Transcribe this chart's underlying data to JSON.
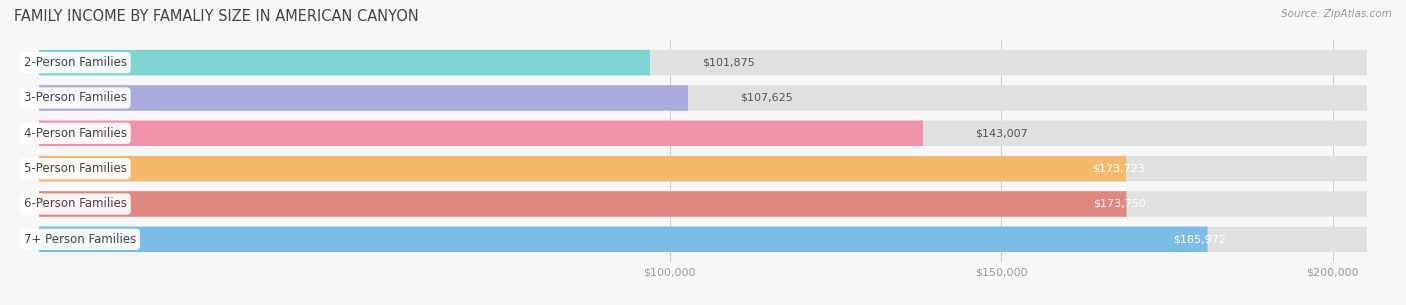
{
  "title": "FAMILY INCOME BY FAMALIY SIZE IN AMERICAN CANYON",
  "source": "Source: ZipAtlas.com",
  "categories": [
    "2-Person Families",
    "3-Person Families",
    "4-Person Families",
    "5-Person Families",
    "6-Person Families",
    "7+ Person Families"
  ],
  "values": [
    101875,
    107625,
    143007,
    173723,
    173750,
    185972
  ],
  "colors": [
    "#7DD4D1",
    "#AAAADD",
    "#F093A8",
    "#F4B96A",
    "#E08880",
    "#7BBDE4"
  ],
  "xmin": 0,
  "xmax": 210000,
  "xticks": [
    100000,
    150000,
    200000
  ],
  "xtick_labels": [
    "$100,000",
    "$150,000",
    "$200,000"
  ],
  "value_labels": [
    "$101,875",
    "$107,625",
    "$143,007",
    "$173,723",
    "$173,750",
    "$185,972"
  ],
  "bar_height": 0.72,
  "background_color": "#f7f7f7",
  "bar_bg_color": "#e8e8e8",
  "title_fontsize": 10.5,
  "label_fontsize": 8.5,
  "value_fontsize": 8,
  "source_fontsize": 7.5
}
